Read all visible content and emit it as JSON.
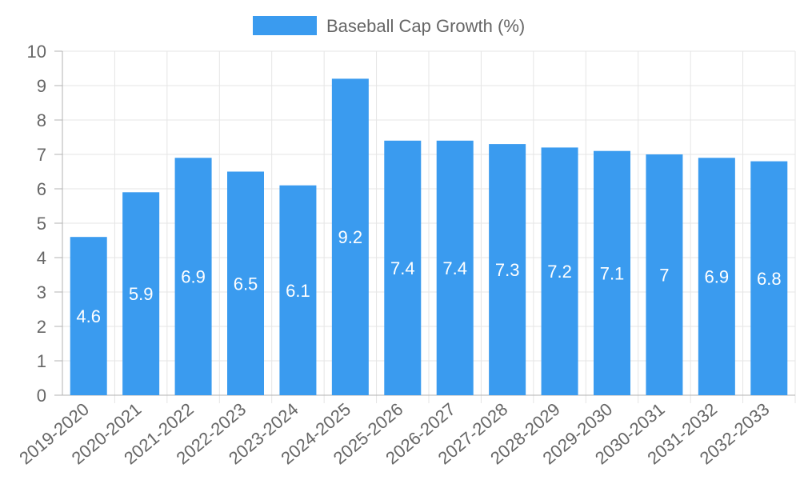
{
  "colors": {
    "bar": "#3a9bef",
    "grid": "#e5e5e5",
    "axis": "#b3b3b3",
    "text": "#666666",
    "label": "#ffffff"
  },
  "chart_data": {
    "type": "bar",
    "categories": [
      "2019-2020",
      "2020-2021",
      "2021-2022",
      "2022-2023",
      "2023-2024",
      "2024-2025",
      "2025-2026",
      "2026-2027",
      "2027-2028",
      "2028-2029",
      "2029-2030",
      "2030-2031",
      "2031-2032",
      "2032-2033"
    ],
    "series": [
      {
        "name": "Baseball Cap Growth (%)",
        "values": [
          4.6,
          5.9,
          6.9,
          6.5,
          6.1,
          9.2,
          7.4,
          7.4,
          7.3,
          7.2,
          7.1,
          7,
          6.9,
          6.8
        ]
      }
    ],
    "ylim": [
      0,
      10
    ],
    "yticks": [
      0,
      1,
      2,
      3,
      4,
      5,
      6,
      7,
      8,
      9,
      10
    ],
    "grid": true,
    "legend_position": "top-center",
    "data_labels": true
  }
}
